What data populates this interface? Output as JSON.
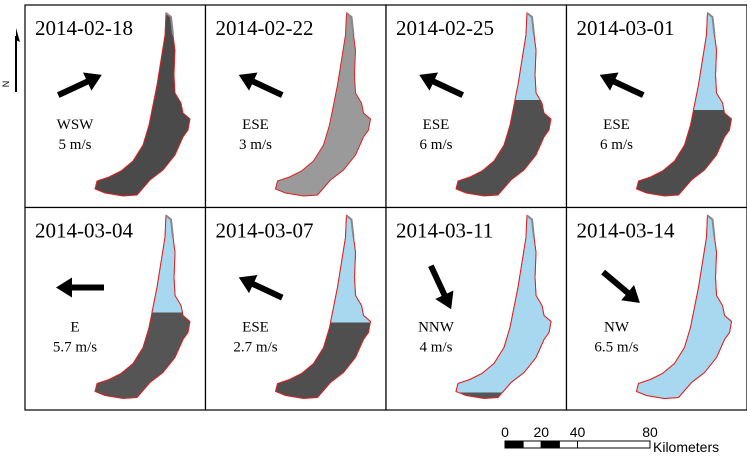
{
  "north_label": "N",
  "panels": [
    {
      "date": "2014-02-18",
      "direction": "WSW",
      "speed": "5 m/s"
    },
    {
      "date": "2014-02-22",
      "direction": "ESE",
      "speed": "3 m/s"
    },
    {
      "date": "2014-02-25",
      "direction": "ESE",
      "speed": "6 m/s"
    },
    {
      "date": "2014-03-01",
      "direction": "ESE",
      "speed": "6 m/s"
    },
    {
      "date": "2014-03-04",
      "direction": "E",
      "speed": "5.7 m/s"
    },
    {
      "date": "2014-03-07",
      "direction": "ESE",
      "speed": "2.7 m/s"
    },
    {
      "date": "2014-03-11",
      "direction": "NNW",
      "speed": "4 m/s"
    },
    {
      "date": "2014-03-14",
      "direction": "NW",
      "speed": "6.5 m/s"
    }
  ],
  "scale_bar": {
    "ticks": [
      0,
      20,
      40,
      80
    ],
    "unit": "Kilometers"
  }
}
